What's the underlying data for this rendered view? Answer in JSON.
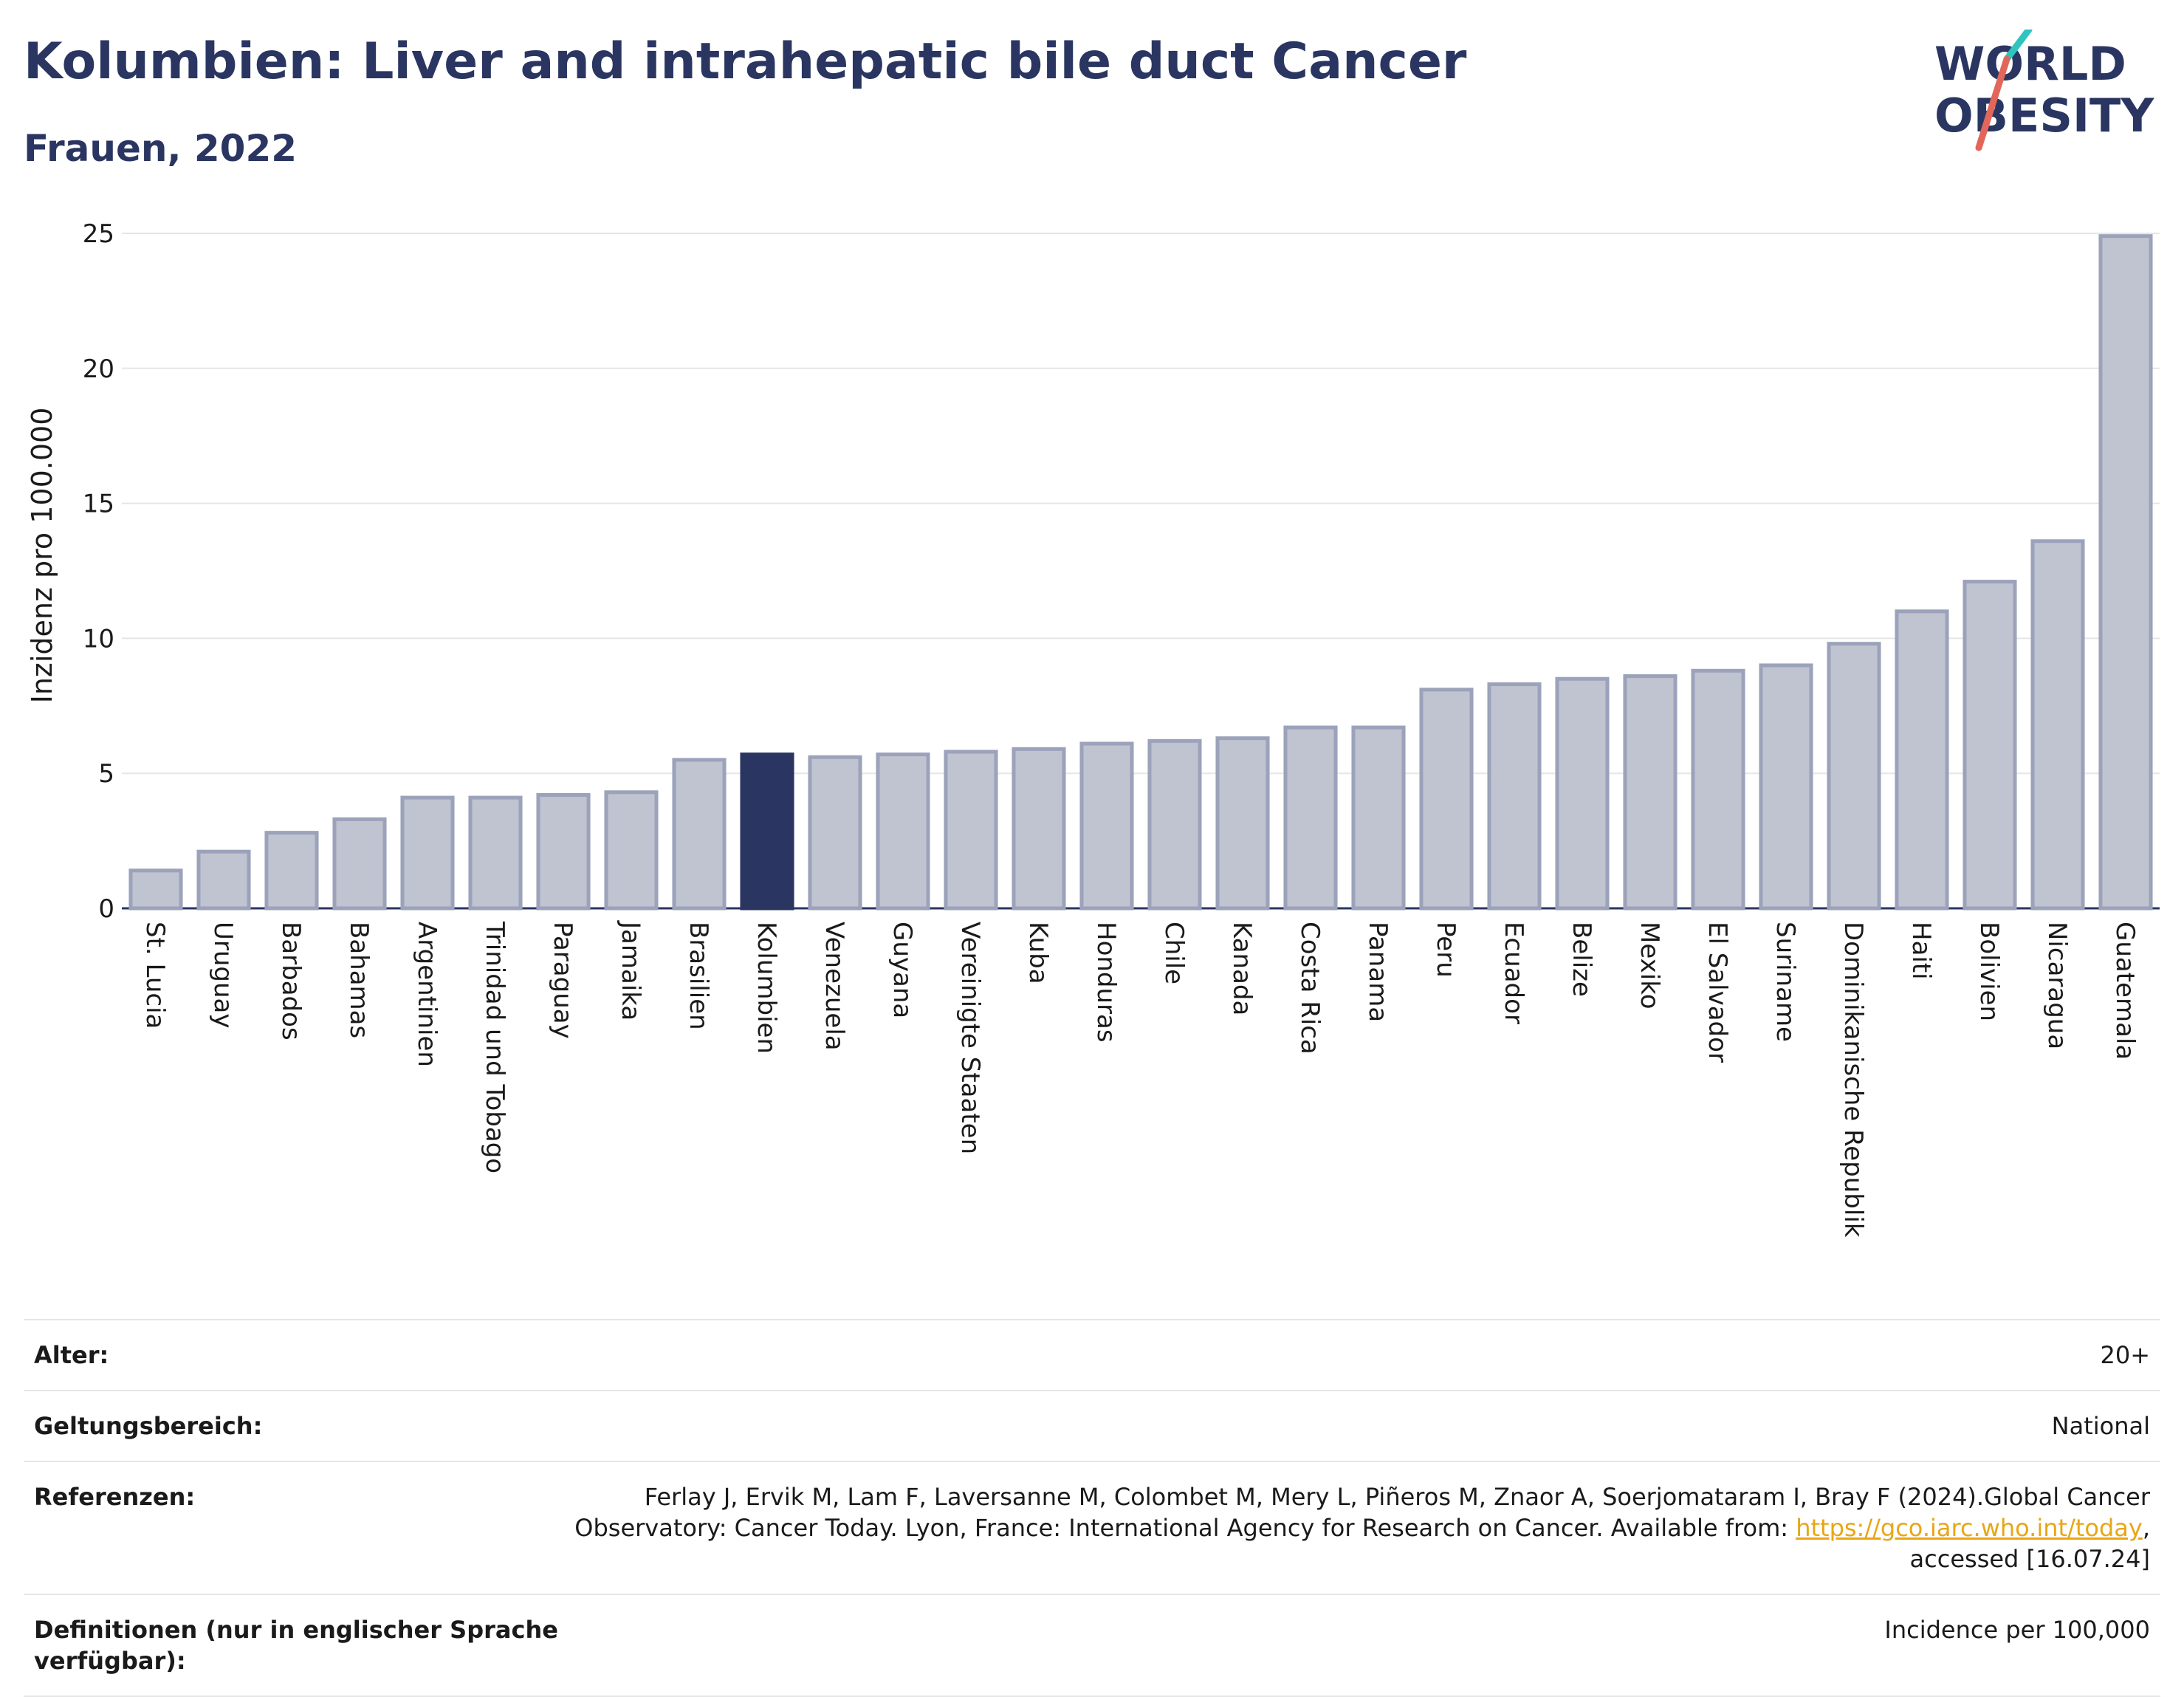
{
  "header": {
    "title": "Kolumbien: Liver and intrahepatic bile duct Cancer",
    "subtitle": "Frauen, 2022"
  },
  "logo": {
    "line1": "WORLD",
    "line2": "OBESITY"
  },
  "colors": {
    "highlight": "#2a3661",
    "bar_fill": "#c0c3d0",
    "bar_stroke": "#9ba2ba",
    "logo_teal": "#2ec4c0",
    "logo_coral": "#e2675a",
    "link": "#e8a617"
  },
  "chart_data": {
    "type": "bar",
    "ylabel": "Inzidenz pro 100.000",
    "ylim": [
      0,
      25
    ],
    "yticks": [
      0,
      5,
      10,
      15,
      20,
      25
    ],
    "grid": true,
    "highlight": "Kolumbien",
    "categories": [
      "St. Lucia",
      "Uruguay",
      "Barbados",
      "Bahamas",
      "Argentinien",
      "Trinidad und Tobago",
      "Paraguay",
      "Jamaika",
      "Brasilien",
      "Kolumbien",
      "Venezuela",
      "Guyana",
      "Vereinigte Staaten",
      "Kuba",
      "Honduras",
      "Chile",
      "Kanada",
      "Costa Rica",
      "Panama",
      "Peru",
      "Ecuador",
      "Belize",
      "Mexiko",
      "El Salvador",
      "Suriname",
      "Dominikanische Republik",
      "Haiti",
      "Bolivien",
      "Nicaragua",
      "Guatemala"
    ],
    "values": [
      1.4,
      2.1,
      2.8,
      3.3,
      4.1,
      4.1,
      4.2,
      4.3,
      5.5,
      5.7,
      5.6,
      5.7,
      5.8,
      5.9,
      6.1,
      6.2,
      6.3,
      6.7,
      6.7,
      8.1,
      8.3,
      8.5,
      8.6,
      8.8,
      9.0,
      9.8,
      11.0,
      12.1,
      13.6,
      24.9
    ]
  },
  "info": [
    {
      "label": "Alter:",
      "value": "20+"
    },
    {
      "label": "Geltungsbereich:",
      "value": "National"
    },
    {
      "label": "Referenzen:",
      "value_before": "Ferlay J, Ervik M, Lam F, Laversanne M, Colombet M, Mery L, Piñeros M, Znaor A, Soerjomataram I, Bray F (2024).Global Cancer Observatory: Cancer Today. Lyon, France: International Agency for Research on Cancer. Available from: ",
      "link": "https://gco.iarc.who.int/today",
      "value_after": ", accessed [16.07.24]"
    },
    {
      "label": "Definitionen (nur in englischer Sprache verfügbar):",
      "value": "Incidence per 100,000"
    }
  ]
}
